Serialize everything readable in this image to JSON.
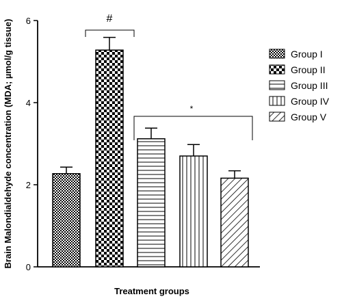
{
  "chart_data": {
    "type": "bar",
    "xlabel": "Treatment groups",
    "ylabel": "Brain Malondialdehyde concentration (MDA; µmol/g tissue)",
    "ylim": [
      0,
      6
    ],
    "yticks": [
      "0",
      "2",
      "4",
      "6"
    ],
    "grid": false,
    "legend_position": "right",
    "categories": [
      "Group I",
      "Group II",
      "Group III",
      "Group IV",
      "Group V"
    ],
    "values": [
      2.27,
      5.28,
      3.12,
      2.7,
      2.16
    ],
    "errors": [
      0.16,
      0.31,
      0.26,
      0.28,
      0.18
    ],
    "patterns": [
      "checker-small",
      "checker-large",
      "horizontal-lines",
      "vertical-lines",
      "diagonal-lines"
    ],
    "annotations": [
      {
        "text": "#",
        "bracket": [
          "Group II"
        ]
      },
      {
        "text": "*",
        "bracket": [
          "Group III",
          "Group IV",
          "Group V"
        ]
      }
    ]
  }
}
